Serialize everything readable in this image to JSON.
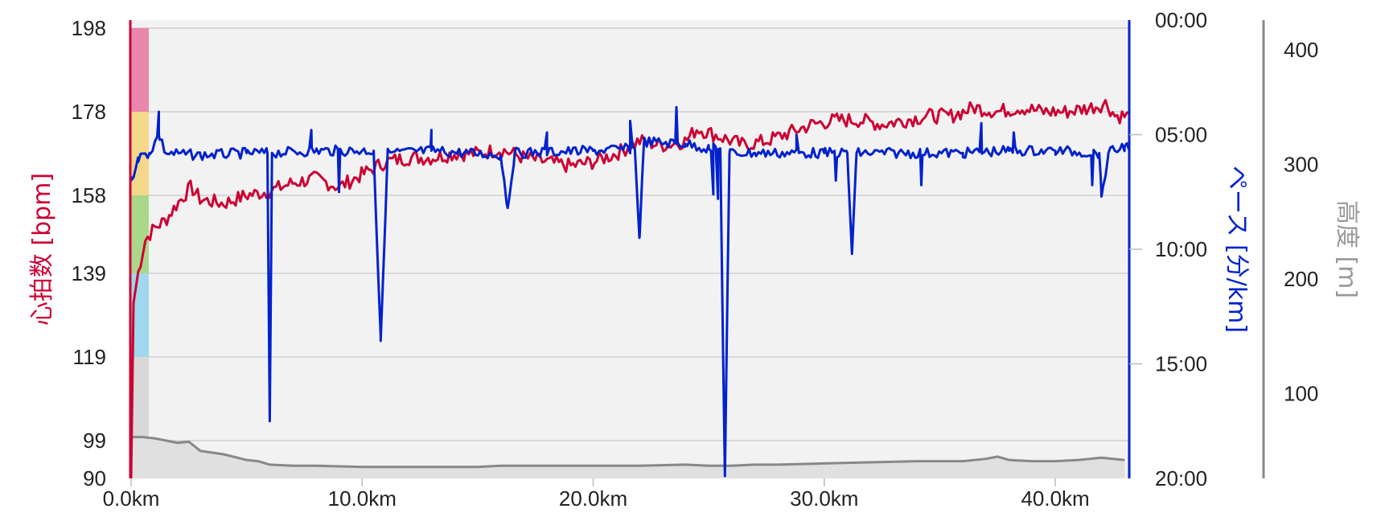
{
  "chart_data": {
    "type": "line",
    "x_axis": {
      "ticks": [
        "0.0km",
        "10.0km",
        "20.0km",
        "30.0km",
        "40.0km"
      ],
      "range_km": [
        0,
        43.2
      ]
    },
    "y_axes": {
      "heart_rate": {
        "label": "心拍数 [bpm]",
        "ticks": [
          "198",
          "178",
          "158",
          "139",
          "119",
          "99",
          "90"
        ],
        "color": "#cc0033"
      },
      "pace": {
        "label": "ペース [分/km]",
        "ticks": [
          "00:00",
          "05:00",
          "10:00",
          "15:00",
          "20:00"
        ],
        "range_min_per_km": [
          0,
          20
        ],
        "color": "#0022cc"
      },
      "elevation": {
        "label": "高度 [m]",
        "ticks": [
          "400",
          "300",
          "200",
          "100"
        ],
        "color": "#888888"
      }
    },
    "hr_zones": [
      {
        "from": 178,
        "to": 198,
        "color": "#e987ad"
      },
      {
        "from": 168,
        "to": 178,
        "color": "#f5d88a"
      },
      {
        "from": 158,
        "to": 168,
        "color": "#f3d88a"
      },
      {
        "from": 139,
        "to": 158,
        "color": "#a9d88a"
      },
      {
        "from": 119,
        "to": 139,
        "color": "#9fd8ee"
      },
      {
        "from": 90,
        "to": 119,
        "color": "#d8d8d8"
      }
    ],
    "series": [
      {
        "key": "heart_rate",
        "color": "#cc0033",
        "points": [
          [
            0,
            90
          ],
          [
            0.05,
            130
          ],
          [
            0.3,
            139
          ],
          [
            0.6,
            147
          ],
          [
            1.0,
            150
          ],
          [
            1.5,
            152
          ],
          [
            2.0,
            156
          ],
          [
            2.6,
            160
          ],
          [
            3.0,
            157
          ],
          [
            4.0,
            156
          ],
          [
            5.0,
            158
          ],
          [
            6.0,
            159
          ],
          [
            7.0,
            161
          ],
          [
            8.0,
            162
          ],
          [
            9.0,
            160
          ],
          [
            10.0,
            163
          ],
          [
            11.0,
            166
          ],
          [
            12.0,
            167
          ],
          [
            13.0,
            167
          ],
          [
            14.0,
            168
          ],
          [
            15.0,
            168
          ],
          [
            16.0,
            169
          ],
          [
            17.0,
            167
          ],
          [
            18.0,
            166
          ],
          [
            19.0,
            165
          ],
          [
            20.0,
            166
          ],
          [
            21.0,
            168
          ],
          [
            22.0,
            171
          ],
          [
            23.0,
            170
          ],
          [
            24.0,
            171
          ],
          [
            24.5,
            174
          ],
          [
            25.5,
            172
          ],
          [
            26.5,
            170
          ],
          [
            27.5,
            171
          ],
          [
            28.5,
            173
          ],
          [
            29.5,
            175
          ],
          [
            30.5,
            176
          ],
          [
            31.5,
            176
          ],
          [
            32.5,
            175
          ],
          [
            33.5,
            176
          ],
          [
            34.5,
            177
          ],
          [
            35.5,
            177
          ],
          [
            36.5,
            179
          ],
          [
            37.5,
            178
          ],
          [
            38.5,
            179
          ],
          [
            39.5,
            178
          ],
          [
            40.5,
            178
          ],
          [
            41.5,
            179
          ],
          [
            42.2,
            180
          ],
          [
            42.6,
            177
          ],
          [
            43.0,
            177
          ]
        ],
        "noise": 1.8
      },
      {
        "key": "pace",
        "color": "#0022cc",
        "points_min_per_km": [
          [
            0,
            7.0
          ],
          [
            0.3,
            6.0
          ],
          [
            0.8,
            5.8
          ],
          [
            1.2,
            5.0
          ],
          [
            1.5,
            5.8
          ],
          [
            3.0,
            5.9
          ],
          [
            5.0,
            5.8
          ],
          [
            5.9,
            5.8
          ],
          [
            6.0,
            17.5
          ],
          [
            6.1,
            5.8
          ],
          [
            8.0,
            5.7
          ],
          [
            10.5,
            5.7
          ],
          [
            10.8,
            14.0
          ],
          [
            11.1,
            5.8
          ],
          [
            13.0,
            5.7
          ],
          [
            16.0,
            5.9
          ],
          [
            16.3,
            8.2
          ],
          [
            16.6,
            5.8
          ],
          [
            20.0,
            5.7
          ],
          [
            21.8,
            5.6
          ],
          [
            22.0,
            9.5
          ],
          [
            22.2,
            5.3
          ],
          [
            24.0,
            5.4
          ],
          [
            25.0,
            5.6
          ],
          [
            25.5,
            5.6
          ],
          [
            25.7,
            19.9
          ],
          [
            25.9,
            5.8
          ],
          [
            27.0,
            5.8
          ],
          [
            30.0,
            5.8
          ],
          [
            31.0,
            5.8
          ],
          [
            31.2,
            10.2
          ],
          [
            31.4,
            5.8
          ],
          [
            36.0,
            5.8
          ],
          [
            38.0,
            5.7
          ],
          [
            40.0,
            5.7
          ],
          [
            41.9,
            5.8
          ],
          [
            42.0,
            7.7
          ],
          [
            42.3,
            5.8
          ],
          [
            43.0,
            5.5
          ]
        ],
        "spikes_min_per_km": [
          [
            1.2,
            4.0
          ],
          [
            7.8,
            4.8
          ],
          [
            9.0,
            7.5
          ],
          [
            13.0,
            4.8
          ],
          [
            18.0,
            4.9
          ],
          [
            21.6,
            4.4
          ],
          [
            23.6,
            3.8
          ],
          [
            25.2,
            7.6
          ],
          [
            25.4,
            7.8
          ],
          [
            28.8,
            5.0
          ],
          [
            30.5,
            7.0
          ],
          [
            34.2,
            7.2
          ],
          [
            36.8,
            4.5
          ],
          [
            38.2,
            4.9
          ],
          [
            41.6,
            7.2
          ]
        ],
        "noise": 0.45
      },
      {
        "key": "elevation",
        "color": "#888888",
        "fill": "#e0e0e0",
        "points": [
          [
            0,
            62
          ],
          [
            0.5,
            62
          ],
          [
            1.0,
            61
          ],
          [
            1.5,
            59
          ],
          [
            2.0,
            57
          ],
          [
            2.5,
            58
          ],
          [
            3.0,
            50
          ],
          [
            4.0,
            47
          ],
          [
            5.0,
            42
          ],
          [
            5.5,
            41
          ],
          [
            6.0,
            38
          ],
          [
            7.0,
            37
          ],
          [
            8.0,
            37
          ],
          [
            10.0,
            36
          ],
          [
            15.0,
            36
          ],
          [
            16.0,
            37
          ],
          [
            18.0,
            37
          ],
          [
            20.0,
            37
          ],
          [
            22.0,
            37
          ],
          [
            24.0,
            38
          ],
          [
            25.0,
            37
          ],
          [
            26.0,
            37
          ],
          [
            27.0,
            38
          ],
          [
            28.0,
            38
          ],
          [
            30.0,
            39
          ],
          [
            32.0,
            40
          ],
          [
            34.0,
            41
          ],
          [
            36.0,
            41
          ],
          [
            37.0,
            43
          ],
          [
            37.5,
            45
          ],
          [
            38.0,
            42
          ],
          [
            39.0,
            41
          ],
          [
            40.0,
            41
          ],
          [
            41.0,
            42
          ],
          [
            42.0,
            44
          ],
          [
            42.5,
            43
          ],
          [
            43.0,
            42
          ]
        ],
        "range_m": [
          0,
          400
        ]
      }
    ]
  }
}
